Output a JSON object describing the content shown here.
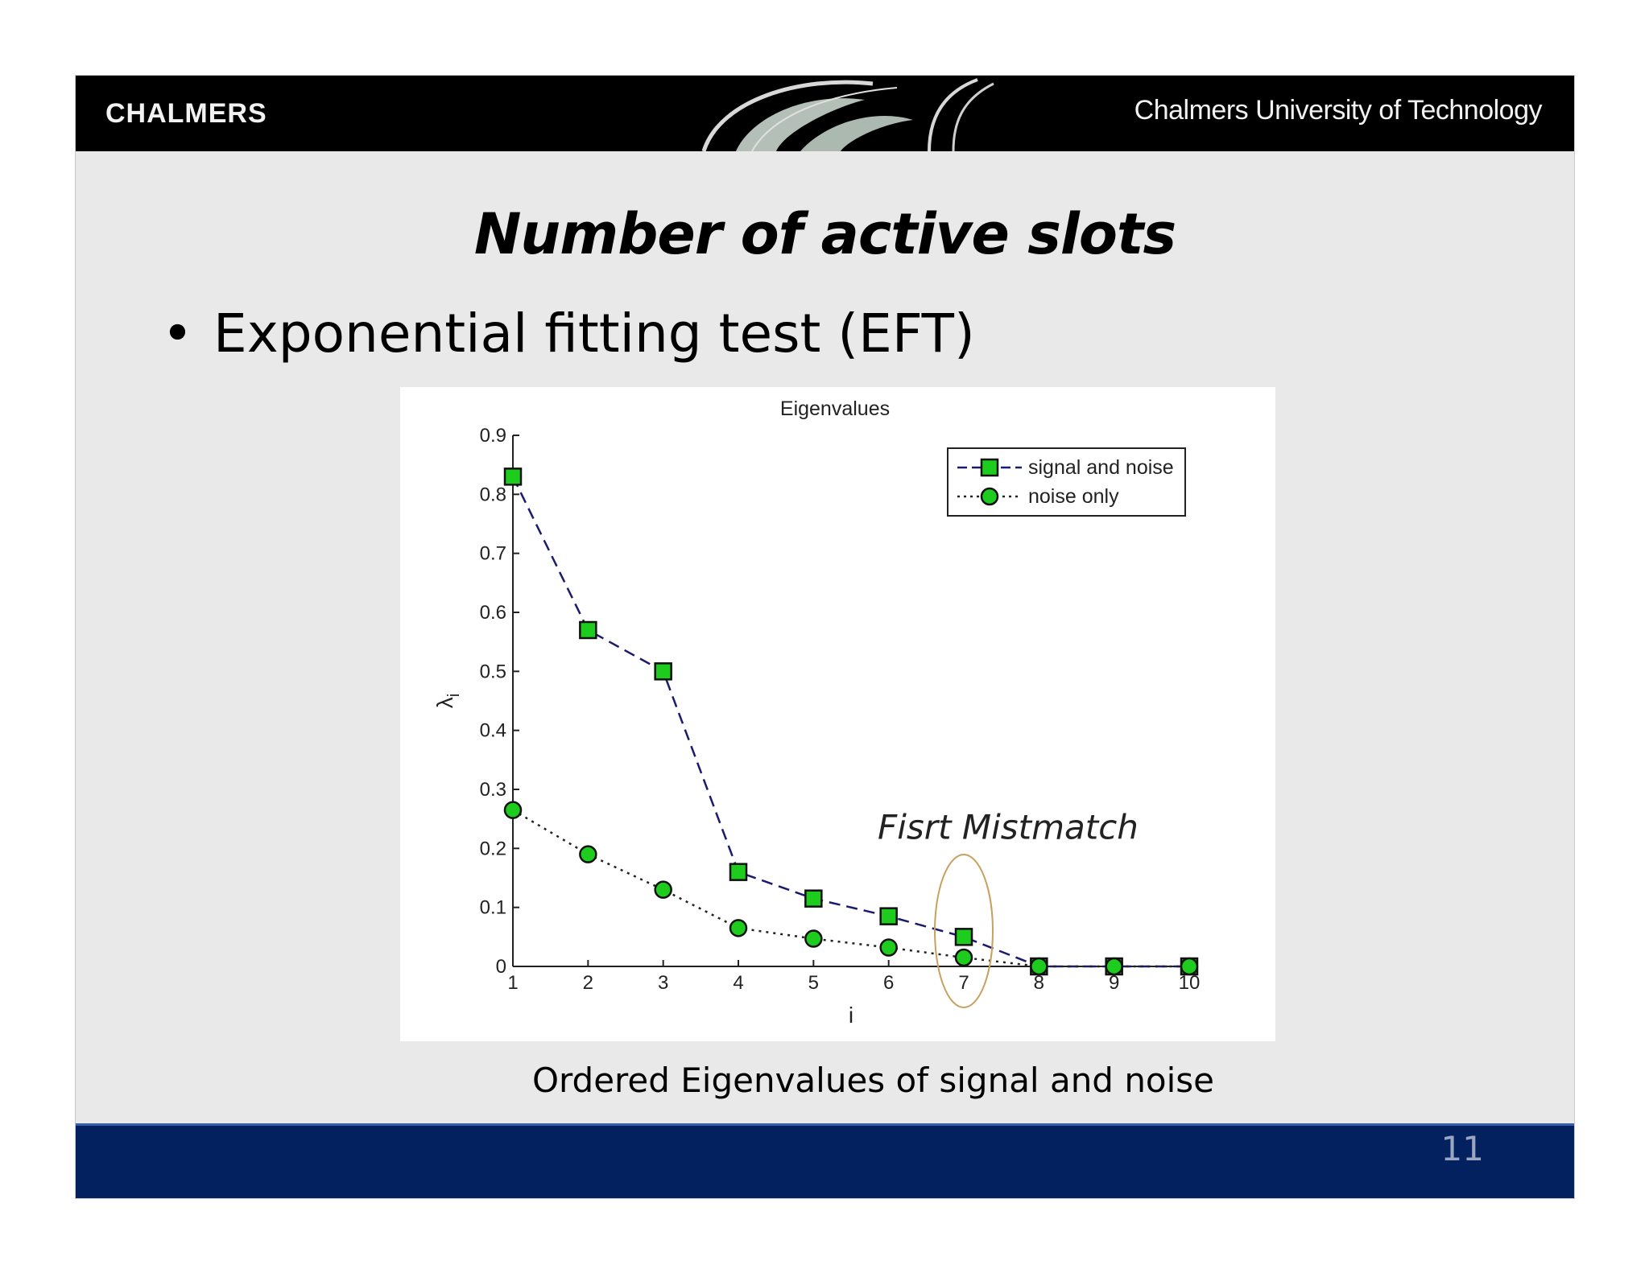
{
  "header": {
    "logo": "CHALMERS",
    "university": "Chalmers University of Technology"
  },
  "slide": {
    "title": "Number of active slots",
    "bullet_marker": "•",
    "bullet": "Exponential fitting test (EFT)",
    "caption": "Ordered Eigenvalues of signal and noise",
    "page_number": "11"
  },
  "colors": {
    "header_bg": "#000000",
    "footer_bg": "#03215f",
    "marker_fill": "#1ecc1e",
    "signal_line": "#1a1a6e",
    "annotation_ellipse": "#c8a060"
  },
  "chart_data": {
    "type": "line",
    "title": "Eigenvalues",
    "xlabel": "i",
    "ylabel": "λ_i",
    "ylabel_main": "λ",
    "ylabel_sub": "i",
    "xlim": [
      1,
      10
    ],
    "ylim": [
      0,
      0.9
    ],
    "x": [
      1,
      2,
      3,
      4,
      5,
      6,
      7,
      8,
      9,
      10
    ],
    "xticks": [
      "1",
      "2",
      "3",
      "4",
      "5",
      "6",
      "7",
      "8",
      "9",
      "10"
    ],
    "yticks": [
      "0",
      "0.1",
      "0.2",
      "0.3",
      "0.4",
      "0.5",
      "0.6",
      "0.7",
      "0.8",
      "0.9"
    ],
    "yvalues": [
      0,
      0.1,
      0.2,
      0.3,
      0.4,
      0.5,
      0.6,
      0.7,
      0.8,
      0.9
    ],
    "grid": false,
    "legend_position": "top-right",
    "series": [
      {
        "name": "signal and noise",
        "marker": "square",
        "line": "dashed",
        "values": [
          0.83,
          0.57,
          0.5,
          0.16,
          0.115,
          0.085,
          0.05,
          0.0,
          0.0,
          0.0
        ]
      },
      {
        "name": "noise only",
        "marker": "circle",
        "line": "dotted",
        "values": [
          0.265,
          0.19,
          0.13,
          0.065,
          0.047,
          0.032,
          0.015,
          0.0,
          0.0,
          0.0
        ]
      }
    ],
    "annotation": {
      "text": "Fisrt Mistmatch",
      "x": 7
    }
  }
}
